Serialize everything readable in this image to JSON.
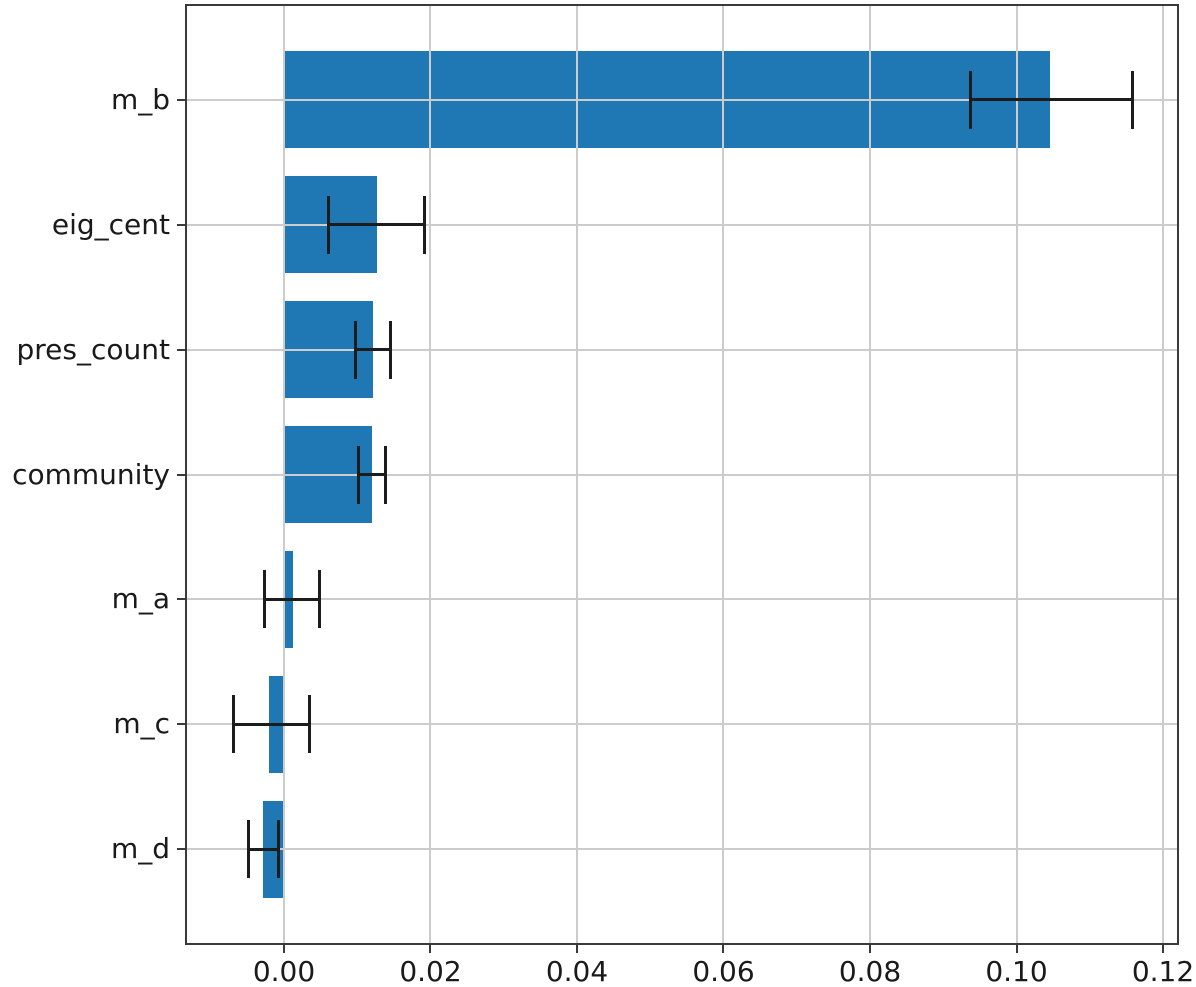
{
  "figure": {
    "background": "#ffffff"
  },
  "chart_data": {
    "type": "bar",
    "orientation": "horizontal",
    "title": "",
    "xlabel": "",
    "ylabel": "",
    "categories": [
      "m_b",
      "eig_cent",
      "pres_count",
      "community",
      "m_a",
      "m_c",
      "m_d"
    ],
    "values": [
      0.1046,
      0.0127,
      0.0122,
      0.012,
      0.0012,
      -0.002,
      -0.0029
    ],
    "error_low": [
      0.0937,
      0.0061,
      0.0098,
      0.0102,
      -0.0026,
      -0.0069,
      -0.0049
    ],
    "error_high": [
      0.1158,
      0.0192,
      0.0146,
      0.0138,
      0.0048,
      0.0035,
      -0.0007
    ],
    "xticks": [
      0.0,
      0.02,
      0.04,
      0.06,
      0.08,
      0.1,
      0.12
    ],
    "xtick_labels": [
      "0.00",
      "0.02",
      "0.04",
      "0.06",
      "0.08",
      "0.10",
      "0.12"
    ],
    "xlim": [
      -0.01324,
      0.12191
    ],
    "grid": true,
    "grid_above_bars": true,
    "legend_position": "none",
    "bar_color": "#1f77b4",
    "errorbar_color": "#1c1c1c",
    "grid_color": "#cccccc",
    "spine_color": "#3a3a3a",
    "tick_label_color": "#1a1a1a"
  }
}
